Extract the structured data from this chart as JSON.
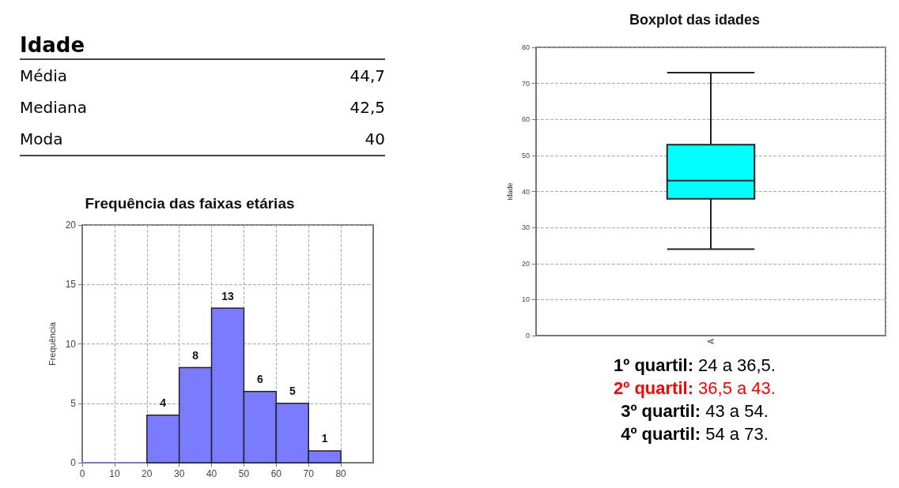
{
  "chart_data": [
    {
      "type": "other",
      "title": "Idade",
      "annotations": [
        "Média",
        "44,7",
        "Mediana",
        "42,5",
        "Moda",
        "40"
      ]
    },
    {
      "type": "histogram",
      "title": "Frequência das faixas etárias",
      "ylabel": "Frequência",
      "bins": [
        0,
        10,
        20,
        30,
        40,
        50,
        60,
        70,
        80
      ],
      "values": [
        0,
        0,
        4,
        8,
        13,
        6,
        5,
        1
      ],
      "value_labels": [
        null,
        null,
        "4",
        "8",
        "13",
        "6",
        "5",
        "1"
      ],
      "color": "#7b7bff",
      "xlim": [
        0,
        90
      ],
      "xticks": [
        0,
        10,
        20,
        30,
        40,
        50,
        60,
        70,
        80
      ],
      "ylim": [
        0,
        20
      ],
      "yticks": [
        0,
        5,
        10,
        15,
        20
      ],
      "grid": true
    },
    {
      "type": "box",
      "title": "Boxplot das idades",
      "ylabel": "Idade",
      "categories": [
        "A"
      ],
      "boxes": [
        {
          "low": 24,
          "q1": 38,
          "median": 43,
          "q3": 53,
          "high": 73
        }
      ],
      "color": "#00ffff",
      "ylim": [
        0,
        80
      ],
      "yticks": [
        0,
        10,
        20,
        30,
        40,
        50,
        60,
        70,
        80
      ],
      "grid": true,
      "annotations": [
        "1º quartil: 24 a 36,5.",
        "2º quartil: 36,5 a 43.",
        "3º quartil: 43 a 54.",
        "4º quartil: 54 a 73."
      ]
    }
  ]
}
